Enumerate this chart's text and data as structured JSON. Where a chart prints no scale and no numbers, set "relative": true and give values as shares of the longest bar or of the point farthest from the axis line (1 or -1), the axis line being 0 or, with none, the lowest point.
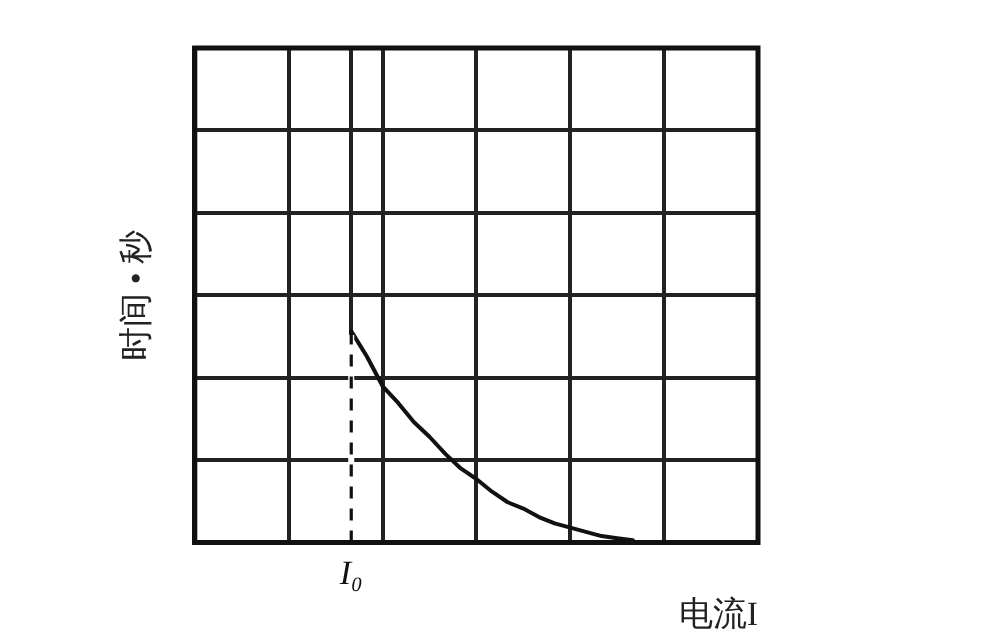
{
  "chart_data": {
    "type": "line",
    "relative": true,
    "xlabel": "电流I",
    "ylabel": "时间 • 秒",
    "categories": [
      null,
      null,
      null,
      null,
      null,
      null,
      null,
      null,
      null,
      null,
      null,
      null,
      null,
      null,
      null,
      null,
      null,
      null,
      null,
      null,
      null,
      null,
      null,
      null,
      null,
      null,
      null,
      null,
      null,
      null,
      null,
      null,
      null,
      null,
      null,
      null,
      null
    ],
    "series": [
      {
        "color": "#111111",
        "values": [
          null,
          null,
          null,
          null,
          null,
          null,
          null,
          null,
          null,
          null,
          1,
          0.88,
          0.74,
          0.66,
          0.57,
          0.5,
          0.42,
          0.35,
          0.3,
          0.24,
          0.19,
          0.16,
          0.12,
          0.09,
          0.07,
          0.05,
          0.03,
          0.02,
          0.01,
          null,
          null,
          null,
          null,
          null,
          null,
          null,
          null
        ]
      }
    ],
    "annotations": [
      "I₀"
    ],
    "grid": true,
    "legend": false,
    "marker": "none",
    "line_style": "solid"
  }
}
